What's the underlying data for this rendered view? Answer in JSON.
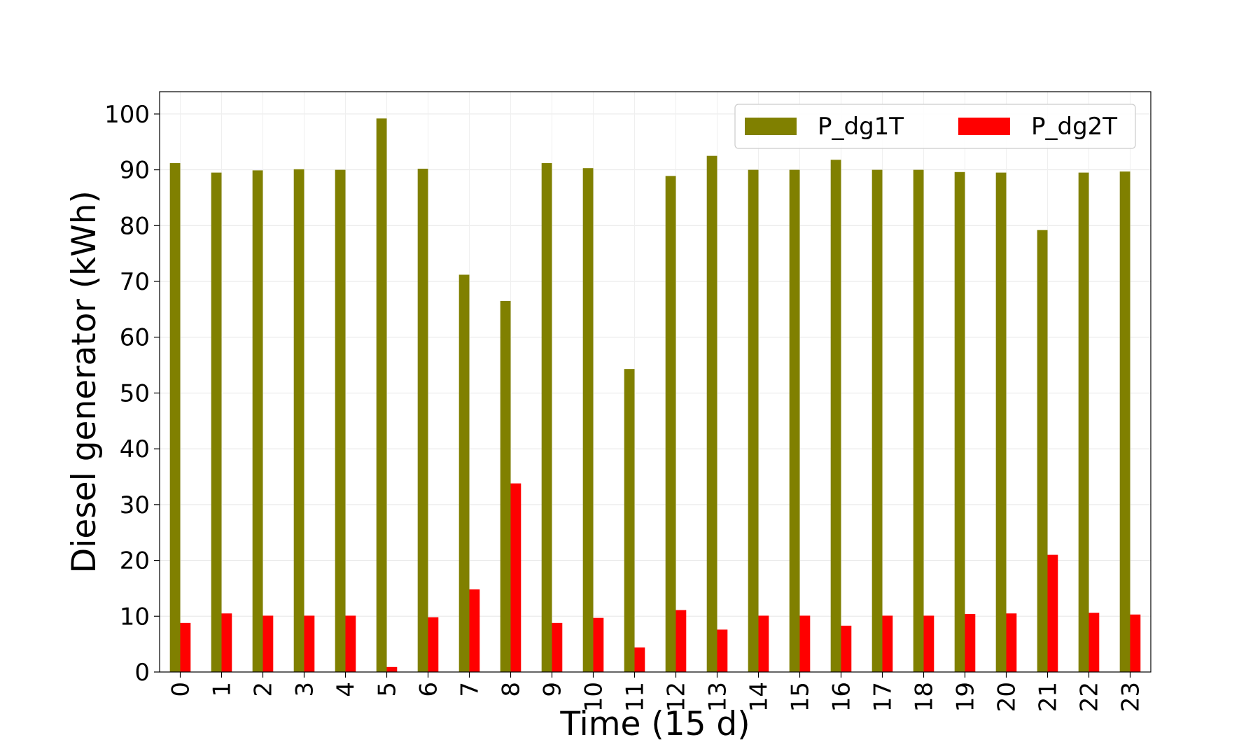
{
  "chart_data": {
    "type": "bar",
    "title": "",
    "xlabel": "Time (15 d)",
    "ylabel": "Diesel generator  (kWh)",
    "categories": [
      "0",
      "1",
      "2",
      "3",
      "4",
      "5",
      "6",
      "7",
      "8",
      "9",
      "10",
      "11",
      "12",
      "13",
      "14",
      "15",
      "16",
      "17",
      "18",
      "19",
      "20",
      "21",
      "22",
      "23"
    ],
    "ylim": [
      0,
      104
    ],
    "yticks": [
      0,
      10,
      20,
      30,
      40,
      50,
      60,
      70,
      80,
      90,
      100
    ],
    "grid": true,
    "legend_position": "top-right",
    "series": [
      {
        "name": "P_dg1T",
        "color": "#808000",
        "values": [
          91.2,
          89.5,
          89.9,
          90.1,
          90.0,
          99.2,
          90.2,
          71.2,
          66.5,
          91.2,
          90.3,
          54.3,
          88.9,
          92.5,
          90.0,
          90.0,
          91.8,
          90.0,
          90.0,
          89.6,
          89.5,
          79.2,
          89.5,
          89.7
        ]
      },
      {
        "name": "P_dg2T",
        "color": "#ff0000",
        "values": [
          8.8,
          10.5,
          10.1,
          10.1,
          10.1,
          0.9,
          9.8,
          14.8,
          33.8,
          8.8,
          9.7,
          4.4,
          11.1,
          7.6,
          10.1,
          10.1,
          8.3,
          10.1,
          10.1,
          10.4,
          10.5,
          21.0,
          10.6,
          10.3
        ]
      }
    ]
  }
}
